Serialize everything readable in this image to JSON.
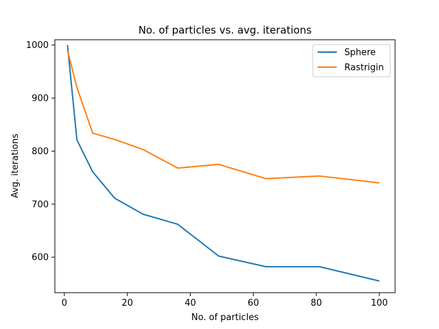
{
  "chart_data": {
    "type": "line",
    "title": "No. of particles vs. avg. iterations",
    "xlabel": "No. of particles",
    "ylabel": "Avg. iterations",
    "xlim": [
      -3,
      105
    ],
    "ylim": [
      533,
      1010
    ],
    "xticks": [
      0,
      20,
      40,
      60,
      80,
      100
    ],
    "yticks": [
      600,
      700,
      800,
      900,
      1000
    ],
    "grid": false,
    "legend": "top-right",
    "series": [
      {
        "name": "Sphere",
        "color": "#1f77b4",
        "x": [
          1,
          4,
          9,
          16,
          25,
          36,
          49,
          64,
          81,
          100
        ],
        "y": [
          1000,
          821,
          761,
          711,
          681,
          662,
          602,
          582,
          582,
          555
        ]
      },
      {
        "name": "Rastrigin",
        "color": "#ff7f0e",
        "x": [
          1,
          4,
          9,
          16,
          25,
          36,
          49,
          64,
          81,
          100
        ],
        "y": [
          990,
          920,
          834,
          822,
          803,
          768,
          775,
          748,
          753,
          740
        ]
      }
    ]
  }
}
